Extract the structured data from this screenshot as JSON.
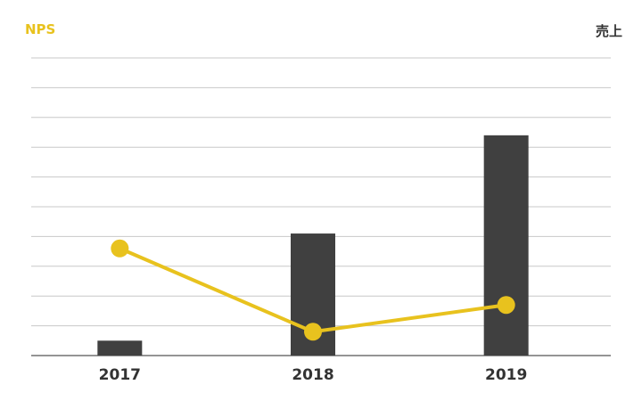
{
  "colors": {
    "background": "#ffffff",
    "grid": "#c8c8c8",
    "bar": "#404040",
    "line": "#e8c21e",
    "tick_text": "#333333"
  },
  "chart_data": {
    "type": "bar",
    "categories": [
      "2017",
      "2018",
      "2019"
    ],
    "grid": true,
    "legend": "none",
    "series": [
      {
        "type": "bar",
        "axis": "right",
        "ylabel": "売上",
        "values": [
          5,
          41,
          74
        ],
        "ylim": [
          0,
          100
        ],
        "color": "#404040"
      },
      {
        "type": "line",
        "axis": "left",
        "ylabel": "NPS",
        "values": [
          36,
          8,
          17
        ],
        "ylim": [
          0,
          100
        ],
        "color": "#e8c21e"
      }
    ]
  }
}
